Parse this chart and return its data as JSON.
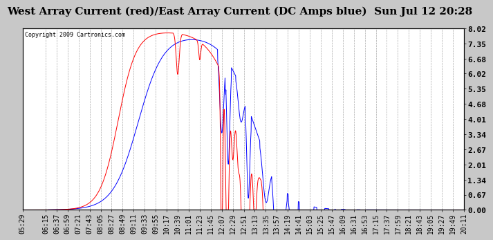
{
  "title": "West Array Current (red)/East Array Current (DC Amps blue)  Sun Jul 12 20:28",
  "copyright": "Copyright 2009 Cartronics.com",
  "ylabel_right_ticks": [
    0.0,
    0.67,
    1.34,
    2.01,
    2.67,
    3.34,
    4.01,
    4.68,
    5.35,
    6.02,
    6.68,
    7.35,
    8.02
  ],
  "ymax": 8.02,
  "ymin": 0.0,
  "background_color": "#c8c8c8",
  "plot_background": "#ffffff",
  "grid_color": "#aaaaaa",
  "title_fontsize": 11,
  "tick_fontsize": 7,
  "x_time_labels": [
    "05:29",
    "06:15",
    "06:37",
    "06:59",
    "07:21",
    "07:43",
    "08:05",
    "08:27",
    "08:49",
    "09:11",
    "09:33",
    "09:55",
    "10:17",
    "10:39",
    "11:01",
    "11:23",
    "11:45",
    "12:07",
    "12:29",
    "12:51",
    "13:13",
    "13:35",
    "13:57",
    "14:19",
    "14:41",
    "15:03",
    "15:25",
    "15:47",
    "16:09",
    "16:31",
    "16:53",
    "17:15",
    "17:37",
    "17:59",
    "18:21",
    "18:43",
    "19:05",
    "19:27",
    "19:49",
    "20:11"
  ]
}
